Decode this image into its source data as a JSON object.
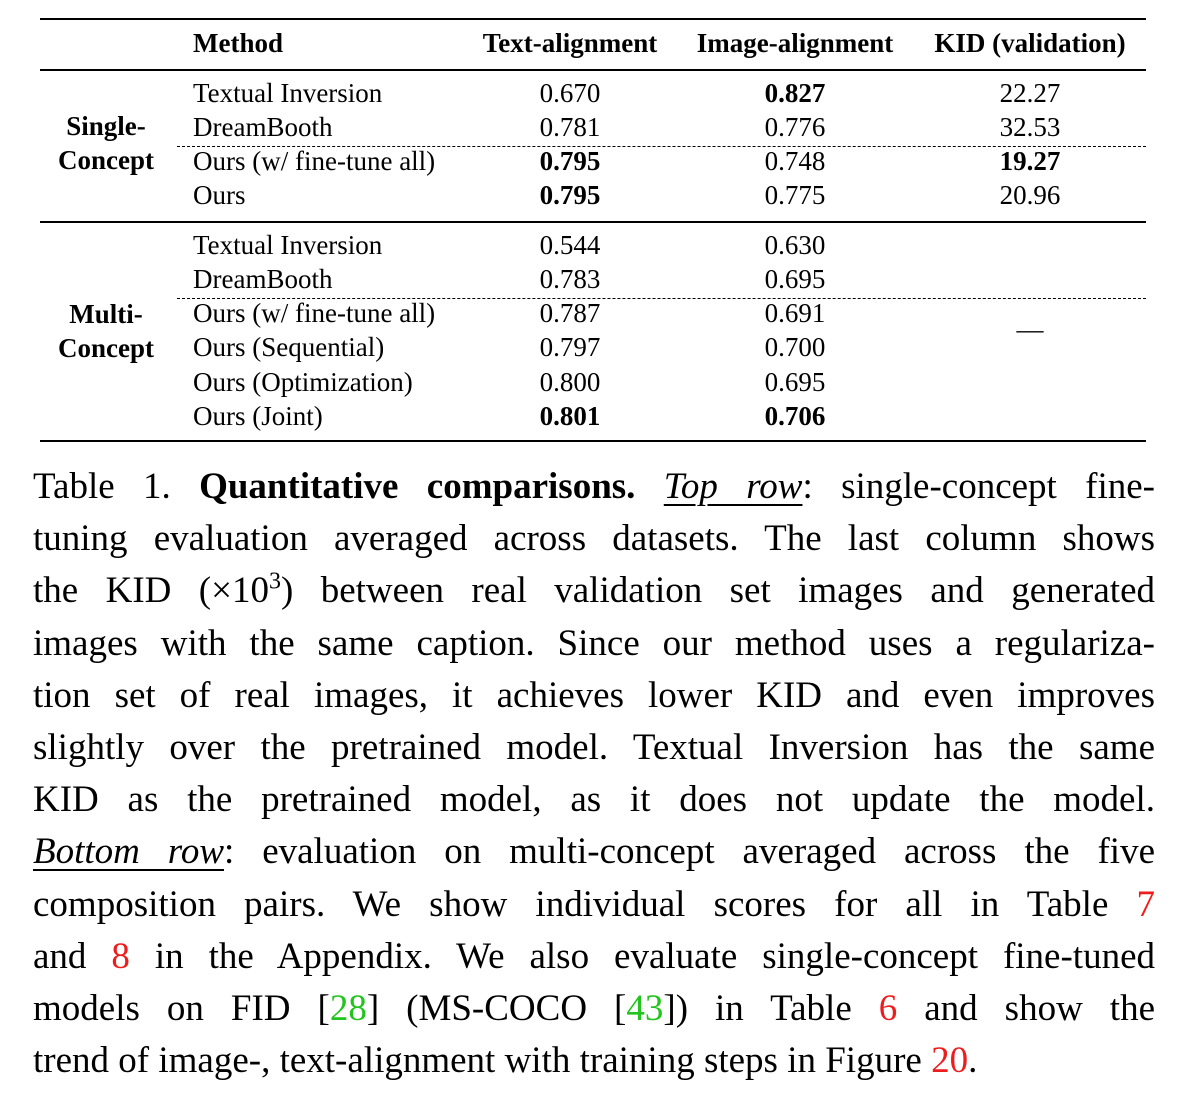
{
  "table": {
    "headers": [
      "Method",
      "Text-alignment",
      "Image-alignment",
      "KID (validation)"
    ],
    "groups": [
      {
        "label": [
          "Single-",
          "Concept"
        ],
        "rows": [
          {
            "method": "Textual Inversion",
            "text": "0.670",
            "image": "0.827",
            "kid": "22.27",
            "bold": [
              "image"
            ]
          },
          {
            "method": "DreamBooth",
            "text": "0.781",
            "image": "0.776",
            "kid": "32.53",
            "bold": []
          },
          {
            "method": "Ours (w/ fine-tune all)",
            "text": "0.795",
            "image": "0.748",
            "kid": "19.27",
            "bold": [
              "text",
              "kid"
            ]
          },
          {
            "method": "Ours",
            "text": "0.795",
            "image": "0.775",
            "kid": "20.96",
            "bold": [
              "text"
            ]
          }
        ]
      },
      {
        "label": [
          "Multi-",
          "Concept"
        ],
        "kid_placeholder": "—",
        "rows": [
          {
            "method": "Textual Inversion",
            "text": "0.544",
            "image": "0.630",
            "bold": []
          },
          {
            "method": "DreamBooth",
            "text": "0.783",
            "image": "0.695",
            "bold": []
          },
          {
            "method": "Ours (w/ fine-tune all)",
            "text": "0.787",
            "image": "0.691",
            "bold": []
          },
          {
            "method": "Ours (Sequential)",
            "text": "0.797",
            "image": "0.700",
            "bold": []
          },
          {
            "method": "Ours (Optimization)",
            "text": "0.800",
            "image": "0.695",
            "bold": []
          },
          {
            "method": "Ours (Joint)",
            "text": "0.801",
            "image": "0.706",
            "bold": [
              "text",
              "image"
            ]
          }
        ]
      }
    ]
  },
  "caption": {
    "prefix": "Table 1.",
    "bold_title": "Quantitative comparisons.",
    "top_row": "Top row",
    "l1_rest": ": single-concept fine-",
    "l2": "tuning evaluation averaged across datasets. The last column shows",
    "l3_a": "the KID (×10",
    "l3_sup": "3",
    "l3_b": ") between real validation set images and generated",
    "l4": "images with the same caption. Since our method uses a regulariza-",
    "l5": "tion set of real images, it achieves lower KID and even improves",
    "l6": "slightly over the pretrained model. Textual Inversion has the same",
    "l7": "KID as the pretrained model, as it does not update the model.",
    "bottom_row": "Bottom row",
    "l8_rest": ": evaluation on multi-concept averaged across the five",
    "l9_a": "composition pairs. We show individual scores for all in Table ",
    "ref7": "7",
    "l10_a": "and ",
    "ref8": "8",
    "l10_b": " in the Appendix. We also evaluate single-concept fine-tuned",
    "l11_a": "models on FID [",
    "ref28": "28",
    "l11_b": "] (MS-COCO [",
    "ref43": "43",
    "l11_c": "]) in Table ",
    "ref6": "6",
    "l11_d": " and show the",
    "l12_a": "trend of image-, text-alignment with training steps in Figure ",
    "ref20": "20",
    "l12_b": ".",
    "colors": {
      "ref_red": "#ee1c1c",
      "ref_green": "#22c51e"
    }
  }
}
